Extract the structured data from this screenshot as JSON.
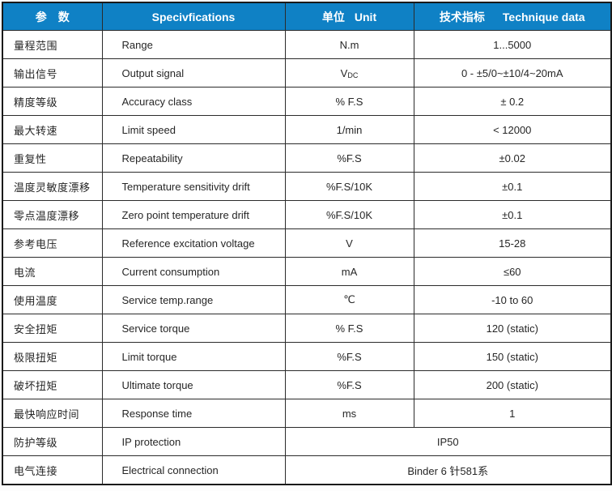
{
  "table": {
    "colors": {
      "header_bg": "#0f81c5",
      "header_text": "#ffffff",
      "body_text": "#262626",
      "border": "#2b2b2b"
    },
    "header": {
      "cols": [
        {
          "cn": "参　数",
          "en": ""
        },
        {
          "cn": "",
          "en": "Specivfications"
        },
        {
          "cn": "单位",
          "en": "Unit"
        },
        {
          "cn": "技术指标",
          "en": "Technique data"
        }
      ]
    },
    "rows": [
      {
        "cn": "量程范围",
        "en": "Range",
        "unit": "N.m",
        "unit_sub": "",
        "value": "1...5000"
      },
      {
        "cn": "输出信号",
        "en": "Output signal",
        "unit": "V",
        "unit_sub": "DC",
        "value": "0 - ±5/0~±10/4~20mA"
      },
      {
        "cn": "精度等级",
        "en": "Accuracy class",
        "unit": "% F.S",
        "unit_sub": "",
        "value": "± 0.2"
      },
      {
        "cn": "最大转速",
        "en": "Limit speed",
        "unit": "1/min",
        "unit_sub": "",
        "value": "< 12000"
      },
      {
        "cn": "重复性",
        "en": "Repeatability",
        "unit": "%F.S",
        "unit_sub": "",
        "value": "±0.02"
      },
      {
        "cn": "温度灵敏度漂移",
        "en": "Temperature sensitivity drift",
        "unit": "%F.S/10K",
        "unit_sub": "",
        "value": "±0.1"
      },
      {
        "cn": "零点温度漂移",
        "en": "Zero point temperature drift",
        "unit": "%F.S/10K",
        "unit_sub": "",
        "value": "±0.1"
      },
      {
        "cn": "参考电压",
        "en": "Reference excitation voltage",
        "unit": "V",
        "unit_sub": "",
        "value": "15-28"
      },
      {
        "cn": "电流",
        "en": "Current consumption",
        "unit": "mA",
        "unit_sub": "",
        "value": "≤60"
      },
      {
        "cn": "使用温度",
        "en": "Service temp.range",
        "unit": "℃",
        "unit_sub": "",
        "value": "-10 to 60"
      },
      {
        "cn": "安全扭矩",
        "en": "Service torque",
        "unit": "% F.S",
        "unit_sub": "",
        "value": "120 (static)"
      },
      {
        "cn": "极限扭矩",
        "en": "Limit torque",
        "unit": "%F.S",
        "unit_sub": "",
        "value": "150 (static)"
      },
      {
        "cn": "破坏扭矩",
        "en": "Ultimate torque",
        "unit": "%F.S",
        "unit_sub": "",
        "value": "200 (static)"
      },
      {
        "cn": "最快响应时间",
        "en": "Response time",
        "unit": "ms",
        "unit_sub": "",
        "value": "1"
      },
      {
        "cn": "防护等级",
        "en": "IP protection",
        "value": "IP50"
      },
      {
        "cn": "电气连接",
        "en": "Electrical connection",
        "value": "Binder 6 针581系"
      }
    ]
  }
}
